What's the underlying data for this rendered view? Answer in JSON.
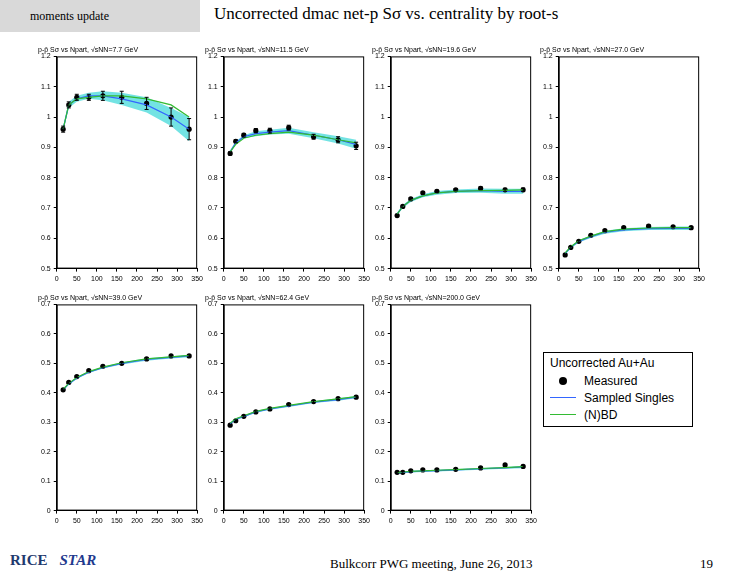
{
  "header": {
    "tag": "moments update",
    "title": "Uncorrected dmac net-p Sσ vs. centrality by root-s"
  },
  "footer": {
    "logos": [
      "RICE",
      "STAR"
    ],
    "text": "Bulkcorr PWG meeting, June 26, 2013",
    "page": "19"
  },
  "legend": {
    "title": "Uncorrected Au+Au"
  },
  "chart_data": [
    {
      "type": "line",
      "title": "p-p̄ Sσ vs Npart, √sNN=7.7 GeV",
      "x": [
        16,
        30,
        50,
        80,
        115,
        162,
        224,
        285,
        330
      ],
      "xlim": [
        0,
        350
      ],
      "xticks": [
        0,
        50,
        100,
        150,
        200,
        250,
        300,
        350
      ],
      "ylim": [
        0.5,
        1.2
      ],
      "yticks": [
        0.5,
        0.6,
        0.7,
        0.8,
        0.9,
        1,
        1.1,
        1.2
      ],
      "grid": false,
      "series": [
        {
          "name": "Measured",
          "type": "scatter",
          "marker": "circle",
          "color": "#000000",
          "values": [
            0.96,
            1.04,
            1.065,
            1.065,
            1.07,
            1.065,
            1.045,
            1.0,
            0.96
          ],
          "errors": [
            0.01,
            0.01,
            0.01,
            0.01,
            0.015,
            0.02,
            0.02,
            0.03,
            0.035
          ]
        },
        {
          "name": "Sampled Singles",
          "type": "line",
          "line_style": "solid",
          "color": "#3366ff",
          "values": [
            0.96,
            1.04,
            1.06,
            1.07,
            1.07,
            1.06,
            1.04,
            1.0,
            0.96
          ],
          "errors": [
            0.01,
            0.01,
            0.01,
            0.01,
            0.015,
            0.02,
            0.025,
            0.03,
            0.04
          ]
        },
        {
          "name": "(N)BD",
          "type": "line",
          "line_style": "solid",
          "color": "#33bb33",
          "values": [
            0.96,
            1.04,
            1.06,
            1.065,
            1.07,
            1.07,
            1.06,
            1.04,
            1.0
          ]
        }
      ]
    },
    {
      "type": "line",
      "title": "p-p̄ Sσ vs Npart, √sNN=11.5 GeV",
      "x": [
        16,
        30,
        50,
        80,
        115,
        162,
        224,
        285,
        330
      ],
      "xlim": [
        0,
        350
      ],
      "xticks": [
        0,
        50,
        100,
        150,
        200,
        250,
        300,
        350
      ],
      "ylim": [
        0.5,
        1.2
      ],
      "yticks": [
        0.5,
        0.6,
        0.7,
        0.8,
        0.9,
        1,
        1.1,
        1.2
      ],
      "grid": false,
      "series": [
        {
          "name": "Measured",
          "type": "scatter",
          "marker": "circle",
          "color": "#000000",
          "values": [
            0.88,
            0.92,
            0.94,
            0.955,
            0.955,
            0.965,
            0.935,
            0.925,
            0.905
          ],
          "errors": [
            0.005,
            0.005,
            0.006,
            0.007,
            0.008,
            0.008,
            0.008,
            0.01,
            0.012
          ]
        },
        {
          "name": "Sampled Singles",
          "type": "line",
          "line_style": "solid",
          "color": "#3366ff",
          "values": [
            0.885,
            0.915,
            0.935,
            0.945,
            0.95,
            0.955,
            0.94,
            0.925,
            0.91
          ],
          "errors": [
            0.005,
            0.005,
            0.005,
            0.008,
            0.008,
            0.01,
            0.01,
            0.012,
            0.015
          ]
        },
        {
          "name": "(N)BD",
          "type": "line",
          "line_style": "solid",
          "color": "#33bb33",
          "values": [
            0.885,
            0.91,
            0.93,
            0.94,
            0.945,
            0.95,
            0.94,
            0.925,
            0.915
          ]
        }
      ]
    },
    {
      "type": "line",
      "title": "p-p̄ Sσ vs Npart, √sNN=19.6 GeV",
      "x": [
        16,
        30,
        50,
        80,
        115,
        162,
        224,
        285,
        330
      ],
      "xlim": [
        0,
        350
      ],
      "xticks": [
        0,
        50,
        100,
        150,
        200,
        250,
        300,
        350
      ],
      "ylim": [
        0.5,
        1.2
      ],
      "yticks": [
        0.5,
        0.6,
        0.7,
        0.8,
        0.9,
        1,
        1.1,
        1.2
      ],
      "grid": false,
      "series": [
        {
          "name": "Measured",
          "type": "scatter",
          "marker": "circle",
          "color": "#000000",
          "values": [
            0.675,
            0.705,
            0.73,
            0.75,
            0.755,
            0.76,
            0.765,
            0.76,
            0.76
          ],
          "errors": [
            0.004,
            0.004,
            0.004,
            0.004,
            0.004,
            0.004,
            0.005,
            0.005,
            0.006
          ]
        },
        {
          "name": "Sampled Singles",
          "type": "line",
          "line_style": "solid",
          "color": "#3366ff",
          "values": [
            0.68,
            0.705,
            0.725,
            0.74,
            0.75,
            0.755,
            0.757,
            0.755,
            0.755
          ],
          "errors": [
            0.005,
            0.005,
            0.005,
            0.005,
            0.006,
            0.006,
            0.007,
            0.008,
            0.008
          ]
        },
        {
          "name": "(N)BD",
          "type": "line",
          "line_style": "solid",
          "color": "#33bb33",
          "values": [
            0.68,
            0.705,
            0.725,
            0.74,
            0.75,
            0.755,
            0.757,
            0.758,
            0.76
          ]
        }
      ]
    },
    {
      "type": "line",
      "title": "p-p̄ Sσ vs Npart, √sNN=27.0 GeV",
      "x": [
        16,
        30,
        50,
        80,
        115,
        162,
        224,
        285,
        330
      ],
      "xlim": [
        0,
        350
      ],
      "xticks": [
        0,
        50,
        100,
        150,
        200,
        250,
        300,
        350
      ],
      "ylim": [
        0.5,
        1.2
      ],
      "yticks": [
        0.5,
        0.6,
        0.7,
        0.8,
        0.9,
        1,
        1.1,
        1.2
      ],
      "grid": false,
      "series": [
        {
          "name": "Measured",
          "type": "scatter",
          "marker": "circle",
          "color": "#000000",
          "values": [
            0.545,
            0.57,
            0.59,
            0.61,
            0.625,
            0.635,
            0.64,
            0.638,
            0.635
          ],
          "errors": [
            0.003,
            0.003,
            0.003,
            0.003,
            0.003,
            0.003,
            0.004,
            0.004,
            0.004
          ]
        },
        {
          "name": "Sampled Singles",
          "type": "line",
          "line_style": "solid",
          "color": "#3366ff",
          "values": [
            0.55,
            0.57,
            0.59,
            0.605,
            0.62,
            0.628,
            0.632,
            0.633,
            0.633
          ],
          "errors": [
            0.004,
            0.004,
            0.004,
            0.004,
            0.005,
            0.005,
            0.005,
            0.006,
            0.006
          ]
        },
        {
          "name": "(N)BD",
          "type": "line",
          "line_style": "solid",
          "color": "#33bb33",
          "values": [
            0.552,
            0.572,
            0.592,
            0.607,
            0.622,
            0.63,
            0.634,
            0.635,
            0.635
          ]
        }
      ]
    },
    {
      "type": "line",
      "title": "p-p̄ Sσ vs Npart, √sNN=39.0 GeV",
      "x": [
        16,
        30,
        50,
        80,
        115,
        162,
        224,
        285,
        330
      ],
      "xlim": [
        0,
        350
      ],
      "xticks": [
        0,
        50,
        100,
        150,
        200,
        250,
        300,
        350
      ],
      "ylim": [
        0,
        0.7
      ],
      "yticks": [
        0,
        0.1,
        0.2,
        0.3,
        0.4,
        0.5,
        0.6,
        0.7
      ],
      "grid": false,
      "series": [
        {
          "name": "Measured",
          "type": "scatter",
          "marker": "circle",
          "color": "#000000",
          "values": [
            0.41,
            0.435,
            0.455,
            0.475,
            0.49,
            0.5,
            0.515,
            0.525,
            0.525
          ],
          "errors": [
            0.003,
            0.003,
            0.003,
            0.003,
            0.003,
            0.003,
            0.003,
            0.004,
            0.004
          ]
        },
        {
          "name": "Sampled Singles",
          "type": "line",
          "line_style": "solid",
          "color": "#3366ff",
          "values": [
            0.41,
            0.43,
            0.45,
            0.47,
            0.485,
            0.5,
            0.513,
            0.52,
            0.525
          ],
          "errors": [
            0.003,
            0.003,
            0.003,
            0.003,
            0.003,
            0.004,
            0.004,
            0.004,
            0.004
          ]
        },
        {
          "name": "(N)BD",
          "type": "line",
          "line_style": "solid",
          "color": "#33bb33",
          "values": [
            0.412,
            0.432,
            0.452,
            0.472,
            0.487,
            0.502,
            0.515,
            0.522,
            0.527
          ]
        }
      ]
    },
    {
      "type": "line",
      "title": "p-p̄ Sσ vs Npart, √sNN=62.4 GeV",
      "x": [
        16,
        30,
        50,
        80,
        115,
        162,
        224,
        285,
        330
      ],
      "xlim": [
        0,
        350
      ],
      "xticks": [
        0,
        50,
        100,
        150,
        200,
        250,
        300,
        350
      ],
      "ylim": [
        0,
        0.7
      ],
      "yticks": [
        0,
        0.1,
        0.2,
        0.3,
        0.4,
        0.5,
        0.6,
        0.7
      ],
      "grid": false,
      "series": [
        {
          "name": "Measured",
          "type": "scatter",
          "marker": "circle",
          "color": "#000000",
          "values": [
            0.29,
            0.305,
            0.32,
            0.335,
            0.345,
            0.36,
            0.37,
            0.38,
            0.385
          ],
          "errors": [
            0.003,
            0.003,
            0.003,
            0.003,
            0.003,
            0.003,
            0.003,
            0.003,
            0.004
          ]
        },
        {
          "name": "Sampled Singles",
          "type": "line",
          "line_style": "solid",
          "color": "#3366ff",
          "values": [
            0.295,
            0.31,
            0.32,
            0.335,
            0.345,
            0.355,
            0.368,
            0.377,
            0.385
          ],
          "errors": [
            0.003,
            0.003,
            0.003,
            0.003,
            0.003,
            0.003,
            0.003,
            0.004,
            0.004
          ]
        },
        {
          "name": "(N)BD",
          "type": "line",
          "line_style": "solid",
          "color": "#33bb33",
          "values": [
            0.297,
            0.312,
            0.322,
            0.337,
            0.347,
            0.357,
            0.37,
            0.379,
            0.387
          ]
        }
      ]
    },
    {
      "type": "line",
      "title": "p-p̄ Sσ vs Npart, √sNN=200.0 GeV",
      "x": [
        16,
        30,
        50,
        80,
        115,
        162,
        224,
        285,
        330
      ],
      "xlim": [
        0,
        350
      ],
      "xticks": [
        0,
        50,
        100,
        150,
        200,
        250,
        300,
        350
      ],
      "ylim": [
        0,
        0.7
      ],
      "yticks": [
        0,
        0.1,
        0.2,
        0.3,
        0.4,
        0.5,
        0.6,
        0.7
      ],
      "grid": false,
      "series": [
        {
          "name": "Measured",
          "type": "scatter",
          "marker": "circle",
          "color": "#000000",
          "values": [
            0.13,
            0.13,
            0.135,
            0.138,
            0.138,
            0.14,
            0.145,
            0.155,
            0.15
          ],
          "errors": [
            0.003,
            0.003,
            0.003,
            0.003,
            0.003,
            0.003,
            0.003,
            0.004,
            0.004
          ]
        },
        {
          "name": "Sampled Singles",
          "type": "line",
          "line_style": "solid",
          "color": "#3366ff",
          "values": [
            0.128,
            0.13,
            0.132,
            0.134,
            0.136,
            0.138,
            0.142,
            0.145,
            0.148
          ],
          "errors": [
            0.003,
            0.003,
            0.003,
            0.003,
            0.003,
            0.003,
            0.003,
            0.003,
            0.004
          ]
        },
        {
          "name": "(N)BD",
          "type": "line",
          "line_style": "solid",
          "color": "#33bb33",
          "values": [
            0.129,
            0.131,
            0.133,
            0.135,
            0.137,
            0.139,
            0.143,
            0.146,
            0.149
          ]
        }
      ]
    }
  ]
}
